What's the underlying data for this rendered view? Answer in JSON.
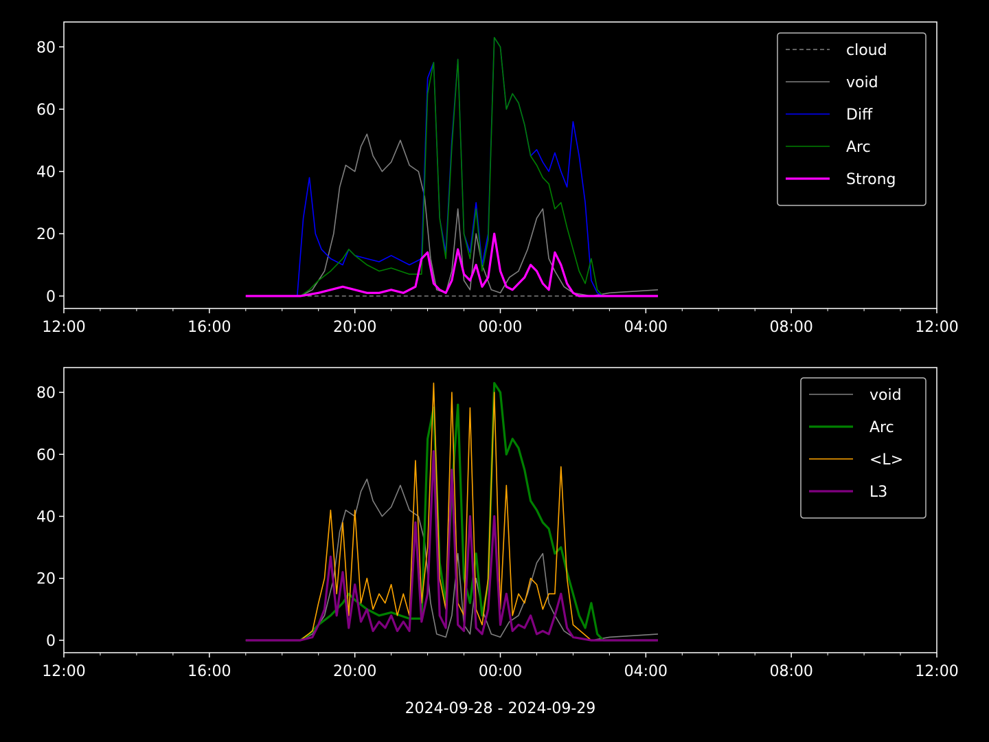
{
  "chart_data": [
    {
      "type": "line",
      "xlabel": "",
      "ylabel": "",
      "xlim": [
        "2024-09-28 12:00",
        "2024-09-29 12:00"
      ],
      "ylim": [
        -4,
        88
      ],
      "x_ticks": [
        "12:00",
        "16:00",
        "20:00",
        "00:00",
        "04:00",
        "08:00",
        "12:00"
      ],
      "y_ticks": [
        0,
        20,
        40,
        60,
        80
      ],
      "legend_position": "top-right",
      "series": [
        {
          "name": "cloud",
          "color": "#808080",
          "style": "dashed",
          "x": [
            "17:00",
            "18:30",
            "19:00",
            "20:00",
            "21:00",
            "22:00",
            "23:00",
            "00:00",
            "01:00",
            "02:00",
            "03:00",
            "04:20"
          ],
          "values": [
            0,
            0,
            0,
            0,
            0,
            0,
            0,
            0,
            0,
            0,
            0,
            0
          ]
        },
        {
          "name": "void",
          "color": "#808080",
          "style": "solid",
          "x": [
            "17:00",
            "18:30",
            "18:50",
            "19:10",
            "19:25",
            "19:35",
            "19:45",
            "20:00",
            "20:10",
            "20:20",
            "20:30",
            "20:45",
            "21:00",
            "21:15",
            "21:30",
            "21:45",
            "21:55",
            "22:05",
            "22:15",
            "22:30",
            "22:40",
            "22:50",
            "23:00",
            "23:10",
            "23:20",
            "23:30",
            "23:45",
            "00:00",
            "00:15",
            "00:30",
            "00:45",
            "01:00",
            "01:10",
            "01:20",
            "01:30",
            "01:45",
            "02:00",
            "02:30",
            "03:00",
            "04:20"
          ],
          "values": [
            0,
            0,
            2,
            8,
            20,
            35,
            42,
            40,
            48,
            52,
            45,
            40,
            43,
            50,
            42,
            40,
            32,
            12,
            2,
            1,
            8,
            28,
            5,
            2,
            20,
            10,
            2,
            1,
            6,
            8,
            15,
            25,
            28,
            12,
            8,
            3,
            1,
            0,
            1,
            2
          ]
        },
        {
          "name": "Diff",
          "color": "#0000ff",
          "style": "solid",
          "x": [
            "17:00",
            "18:25",
            "18:35",
            "18:45",
            "18:55",
            "19:05",
            "19:20",
            "19:40",
            "19:50",
            "20:00",
            "20:20",
            "20:40",
            "21:00",
            "21:30",
            "21:50",
            "22:00",
            "22:10",
            "22:20",
            "22:30",
            "22:40",
            "22:50",
            "23:00",
            "23:10",
            "23:20",
            "23:30",
            "23:40",
            "23:50",
            "00:00",
            "00:10",
            "00:20",
            "00:30",
            "00:40",
            "00:50",
            "01:00",
            "01:10",
            "01:20",
            "01:30",
            "01:40",
            "01:50",
            "02:00",
            "02:10",
            "02:20",
            "02:30",
            "02:40",
            "02:50",
            "03:00",
            "04:20"
          ],
          "values": [
            0,
            0,
            25,
            38,
            20,
            15,
            12,
            10,
            15,
            13,
            12,
            11,
            13,
            10,
            12,
            70,
            75,
            25,
            14,
            50,
            76,
            20,
            14,
            30,
            10,
            20,
            83,
            80,
            60,
            65,
            62,
            55,
            45,
            47,
            43,
            40,
            46,
            40,
            35,
            56,
            45,
            30,
            5,
            1,
            0,
            0,
            0
          ]
        },
        {
          "name": "Arc",
          "color": "#008000",
          "style": "solid",
          "x": [
            "17:00",
            "18:30",
            "18:45",
            "19:00",
            "19:20",
            "19:40",
            "19:50",
            "20:00",
            "20:20",
            "20:40",
            "21:00",
            "21:30",
            "21:50",
            "22:00",
            "22:10",
            "22:20",
            "22:30",
            "22:40",
            "22:50",
            "23:00",
            "23:10",
            "23:20",
            "23:30",
            "23:40",
            "23:50",
            "00:00",
            "00:10",
            "00:20",
            "00:30",
            "00:40",
            "00:50",
            "01:00",
            "01:10",
            "01:20",
            "01:30",
            "01:40",
            "01:50",
            "02:00",
            "02:10",
            "02:20",
            "02:30",
            "02:40",
            "02:50",
            "03:00",
            "04:20"
          ],
          "values": [
            0,
            0,
            2,
            5,
            8,
            12,
            15,
            13,
            10,
            8,
            9,
            7,
            7,
            65,
            75,
            25,
            12,
            48,
            76,
            20,
            12,
            28,
            8,
            18,
            83,
            80,
            60,
            65,
            62,
            55,
            45,
            42,
            38,
            36,
            28,
            30,
            22,
            15,
            8,
            4,
            12,
            2,
            0,
            0,
            0
          ]
        },
        {
          "name": "Strong",
          "color": "#ff00ff",
          "style": "solid",
          "x": [
            "17:00",
            "18:30",
            "19:00",
            "19:20",
            "19:40",
            "20:00",
            "20:20",
            "20:40",
            "21:00",
            "21:20",
            "21:40",
            "21:50",
            "22:00",
            "22:10",
            "22:20",
            "22:30",
            "22:40",
            "22:50",
            "23:00",
            "23:10",
            "23:20",
            "23:30",
            "23:40",
            "23:50",
            "00:00",
            "00:10",
            "00:20",
            "00:30",
            "00:40",
            "00:50",
            "01:00",
            "01:10",
            "01:20",
            "01:30",
            "01:40",
            "01:50",
            "02:00",
            "02:10",
            "02:20",
            "02:30",
            "04:20"
          ],
          "values": [
            0,
            0,
            1,
            2,
            3,
            2,
            1,
            1,
            2,
            1,
            3,
            12,
            14,
            4,
            2,
            1,
            5,
            15,
            7,
            5,
            10,
            3,
            6,
            20,
            8,
            3,
            2,
            4,
            6,
            10,
            8,
            4,
            2,
            14,
            10,
            4,
            1,
            0,
            0,
            0,
            0
          ]
        }
      ]
    },
    {
      "type": "line",
      "xlabel": "2024-09-28 - 2024-09-29",
      "ylabel": "",
      "xlim": [
        "2024-09-28 12:00",
        "2024-09-29 12:00"
      ],
      "ylim": [
        -4,
        88
      ],
      "x_ticks": [
        "12:00",
        "16:00",
        "20:00",
        "00:00",
        "04:00",
        "08:00",
        "12:00"
      ],
      "y_ticks": [
        0,
        20,
        40,
        60,
        80
      ],
      "legend_position": "top-right",
      "series": [
        {
          "name": "void",
          "color": "#808080",
          "style": "solid",
          "x": [
            "17:00",
            "18:30",
            "18:50",
            "19:10",
            "19:25",
            "19:35",
            "19:45",
            "20:00",
            "20:10",
            "20:20",
            "20:30",
            "20:45",
            "21:00",
            "21:15",
            "21:30",
            "21:45",
            "21:55",
            "22:05",
            "22:15",
            "22:30",
            "22:40",
            "22:50",
            "23:00",
            "23:10",
            "23:20",
            "23:30",
            "23:45",
            "00:00",
            "00:15",
            "00:30",
            "00:45",
            "01:00",
            "01:10",
            "01:20",
            "01:30",
            "01:45",
            "02:00",
            "02:30",
            "03:00",
            "04:20"
          ],
          "values": [
            0,
            0,
            2,
            8,
            20,
            35,
            42,
            40,
            48,
            52,
            45,
            40,
            43,
            50,
            42,
            40,
            32,
            12,
            2,
            1,
            8,
            28,
            5,
            2,
            20,
            10,
            2,
            1,
            6,
            8,
            15,
            25,
            28,
            12,
            8,
            3,
            1,
            0,
            1,
            2
          ]
        },
        {
          "name": "Arc",
          "color": "#008000",
          "style": "solid",
          "x": [
            "17:00",
            "18:30",
            "18:45",
            "19:00",
            "19:20",
            "19:40",
            "19:50",
            "20:00",
            "20:20",
            "20:40",
            "21:00",
            "21:30",
            "21:50",
            "22:00",
            "22:10",
            "22:20",
            "22:30",
            "22:40",
            "22:50",
            "23:00",
            "23:10",
            "23:20",
            "23:30",
            "23:40",
            "23:50",
            "00:00",
            "00:10",
            "00:20",
            "00:30",
            "00:40",
            "00:50",
            "01:00",
            "01:10",
            "01:20",
            "01:30",
            "01:40",
            "01:50",
            "02:00",
            "02:10",
            "02:20",
            "02:30",
            "02:40",
            "02:50",
            "03:00",
            "04:20"
          ],
          "values": [
            0,
            0,
            2,
            5,
            8,
            12,
            15,
            13,
            10,
            8,
            9,
            7,
            7,
            65,
            75,
            25,
            12,
            48,
            76,
            20,
            12,
            28,
            8,
            18,
            83,
            80,
            60,
            65,
            62,
            55,
            45,
            42,
            38,
            36,
            28,
            30,
            22,
            15,
            8,
            4,
            12,
            2,
            0,
            0,
            0
          ]
        },
        {
          "name": "<L>",
          "color": "#ffa500",
          "style": "solid",
          "x": [
            "17:00",
            "18:30",
            "18:50",
            "19:00",
            "19:10",
            "19:20",
            "19:30",
            "19:40",
            "19:50",
            "20:00",
            "20:10",
            "20:20",
            "20:30",
            "20:40",
            "20:50",
            "21:00",
            "21:10",
            "21:20",
            "21:30",
            "21:40",
            "21:50",
            "22:00",
            "22:10",
            "22:20",
            "22:30",
            "22:40",
            "22:50",
            "23:00",
            "23:10",
            "23:20",
            "23:30",
            "23:40",
            "23:50",
            "00:00",
            "00:10",
            "00:20",
            "00:30",
            "00:40",
            "00:50",
            "01:00",
            "01:10",
            "01:20",
            "01:30",
            "01:40",
            "01:50",
            "02:00",
            "02:30",
            "04:20"
          ],
          "values": [
            0,
            0,
            3,
            12,
            20,
            42,
            15,
            38,
            8,
            42,
            12,
            20,
            10,
            15,
            12,
            18,
            8,
            15,
            8,
            58,
            12,
            30,
            83,
            20,
            10,
            80,
            12,
            8,
            75,
            10,
            5,
            20,
            80,
            10,
            50,
            8,
            15,
            12,
            20,
            18,
            10,
            15,
            15,
            56,
            20,
            5,
            0,
            0
          ]
        },
        {
          "name": "L3",
          "color": "#800080",
          "style": "solid",
          "x": [
            "17:00",
            "18:30",
            "18:50",
            "19:00",
            "19:10",
            "19:20",
            "19:30",
            "19:40",
            "19:50",
            "20:00",
            "20:10",
            "20:20",
            "20:30",
            "20:40",
            "20:50",
            "21:00",
            "21:10",
            "21:20",
            "21:30",
            "21:40",
            "21:50",
            "22:00",
            "22:10",
            "22:20",
            "22:30",
            "22:40",
            "22:50",
            "23:00",
            "23:10",
            "23:20",
            "23:30",
            "23:40",
            "23:50",
            "00:00",
            "00:10",
            "00:20",
            "00:30",
            "00:40",
            "00:50",
            "01:00",
            "01:10",
            "01:20",
            "01:30",
            "01:40",
            "01:50",
            "02:00",
            "02:30",
            "04:20"
          ],
          "values": [
            0,
            0,
            1,
            5,
            10,
            27,
            8,
            22,
            4,
            18,
            6,
            10,
            3,
            6,
            4,
            8,
            3,
            6,
            3,
            38,
            6,
            15,
            61,
            8,
            4,
            55,
            5,
            3,
            40,
            4,
            2,
            10,
            40,
            5,
            15,
            3,
            5,
            4,
            8,
            2,
            3,
            2,
            8,
            15,
            4,
            1,
            0,
            0
          ]
        }
      ]
    }
  ]
}
